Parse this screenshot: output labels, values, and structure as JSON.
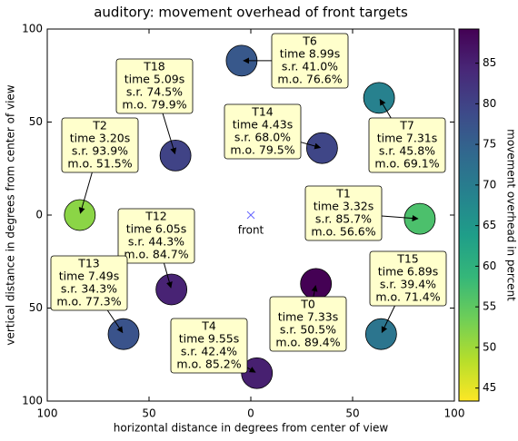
{
  "chart_data": {
    "type": "scatter",
    "title": "auditory: movement overhead of front targets",
    "x_label": "horizontal distance in degrees from center of view",
    "y_label": "vertical distance in degrees from center of view",
    "xlim": [
      -100,
      100
    ],
    "ylim": [
      -100,
      100
    ],
    "xticks": [
      {
        "value": -100,
        "label": "100"
      },
      {
        "value": -50,
        "label": "50"
      },
      0,
      50,
      100
    ],
    "yticks": [
      {
        "value": -100,
        "label": "100"
      },
      {
        "value": -50,
        "label": "50"
      },
      0,
      50,
      100
    ],
    "points": [
      {
        "name": "T0",
        "x": 32,
        "y": -37,
        "value": 89.4,
        "lines": [
          "time 7.33s",
          "s.r. 50.5%",
          "m.o. 89.4%"
        ]
      },
      {
        "name": "T1",
        "x": 83,
        "y": -2,
        "value": 56.6,
        "lines": [
          "time 3.32s",
          "s.r. 85.7%",
          "m.o. 56.6%"
        ]
      },
      {
        "name": "T2",
        "x": -84,
        "y": 0,
        "value": 51.5,
        "lines": [
          "time 3.20s",
          "s.r. 93.9%",
          "m.o. 51.5%"
        ]
      },
      {
        "name": "T4",
        "x": 3,
        "y": -85,
        "value": 85.2,
        "lines": [
          "time 9.55s",
          "s.r. 42.4%",
          "m.o. 85.2%"
        ]
      },
      {
        "name": "T6",
        "x": -4.5,
        "y": 83,
        "value": 76.6,
        "lines": [
          "time 8.99s",
          "s.r. 41.0%",
          "m.o. 76.6%"
        ]
      },
      {
        "name": "T7",
        "x": 63,
        "y": 63,
        "value": 69.1,
        "lines": [
          "time 7.31s",
          "s.r. 45.8%",
          "m.o. 69.1%"
        ]
      },
      {
        "name": "T12",
        "x": -39,
        "y": -40,
        "value": 84.7,
        "lines": [
          "time 6.05s",
          "s.r. 44.3%",
          "m.o. 84.7%"
        ]
      },
      {
        "name": "T13",
        "x": -62.5,
        "y": -64,
        "value": 77.3,
        "lines": [
          "time 7.49s",
          "s.r. 34.3%",
          "m.o. 77.3%"
        ]
      },
      {
        "name": "T14",
        "x": 35,
        "y": 36,
        "value": 79.5,
        "lines": [
          "time 4.43s",
          "s.r. 68.0%",
          "m.o. 79.5%"
        ]
      },
      {
        "name": "T15",
        "x": 64,
        "y": -64,
        "value": 71.4,
        "lines": [
          "time 6.89s",
          "s.r. 39.4%",
          "m.o. 71.4%"
        ]
      },
      {
        "name": "T18",
        "x": -37,
        "y": 32,
        "value": 79.9,
        "lines": [
          "time 5.09s",
          "s.r. 74.5%",
          "m.o. 79.9%"
        ]
      }
    ],
    "annotations": [
      {
        "text": "front",
        "x": 0,
        "y": 0,
        "color": "#6666ff"
      }
    ],
    "colorbar": {
      "label": "movement overhead in percent",
      "lim": [
        43.4,
        89.2
      ],
      "ticks": [
        45,
        50,
        55,
        60,
        65,
        70,
        75,
        80,
        85
      ],
      "colors": [
        "#fde725",
        "#b5de2b",
        "#6ece58",
        "#35b779",
        "#1f9e89",
        "#26828e",
        "#31688e",
        "#3e4989",
        "#482878",
        "#440154"
      ]
    }
  }
}
